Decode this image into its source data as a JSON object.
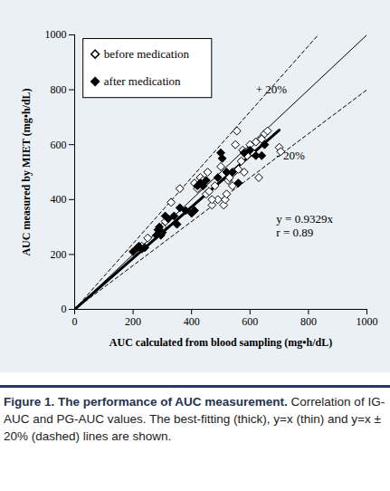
{
  "chart_data": {
    "type": "scatter",
    "x_label": "AUC calculated from blood sampling (mg•h/dL)",
    "y_label": "AUC measured by MIET (mg•h/dL)",
    "xlim": [
      0,
      1000
    ],
    "ylim": [
      0,
      1000
    ],
    "xticks": [
      0,
      200,
      400,
      600,
      800,
      1000
    ],
    "yticks": [
      0,
      200,
      400,
      600,
      800,
      1000
    ],
    "grid": false,
    "legend": "top-left",
    "series": [
      {
        "name": "before medication",
        "color": "#000000",
        "marker": "open diamond",
        "x": [
          410,
          420,
          430,
          440,
          450,
          455,
          460,
          470,
          480,
          490,
          500,
          510,
          515,
          520,
          525,
          530,
          540,
          545,
          550,
          555,
          560,
          570,
          575,
          580,
          590,
          600,
          610,
          620,
          630,
          640,
          650,
          660,
          700,
          705,
          360,
          330,
          310,
          300,
          250,
          230,
          470
        ],
        "values": [
          460,
          440,
          480,
          470,
          420,
          500,
          430,
          380,
          450,
          400,
          520,
          380,
          400,
          420,
          470,
          480,
          450,
          500,
          600,
          650,
          510,
          540,
          580,
          500,
          560,
          600,
          570,
          610,
          480,
          620,
          640,
          650,
          590,
          575,
          440,
          390,
          320,
          300,
          260,
          230,
          400
        ]
      },
      {
        "name": "after medication",
        "color": "#000000",
        "marker": "filled diamond",
        "x": [
          200,
          215,
          220,
          230,
          240,
          280,
          285,
          290,
          295,
          300,
          310,
          320,
          340,
          350,
          360,
          380,
          400,
          410,
          420,
          430,
          440,
          450,
          490,
          500,
          505,
          520,
          560,
          580,
          600,
          620,
          640,
          650,
          540
        ],
        "values": [
          210,
          225,
          230,
          220,
          225,
          270,
          290,
          300,
          270,
          280,
          340,
          330,
          340,
          310,
          370,
          360,
          350,
          360,
          450,
          460,
          450,
          470,
          480,
          570,
          550,
          500,
          460,
          570,
          580,
          560,
          560,
          600,
          500
        ]
      }
    ],
    "reference_lines": [
      {
        "slope": 0.9329,
        "x": [
          0,
          700
        ],
        "line_style": "thick"
      },
      {
        "slope": 1,
        "x": [
          0,
          1000
        ],
        "line_style": "solid"
      },
      {
        "slope": 1.2,
        "x": [
          0,
          1000
        ],
        "line_style": "dashed"
      },
      {
        "slope": 0.8,
        "x": [
          0,
          1000
        ],
        "line_style": "dashed"
      }
    ],
    "annotations": [
      "+ 20%",
      "- 20%",
      "y = 0.9329x",
      "r = 0.89"
    ],
    "caption": {
      "title": "Figure 1. The performance of AUC measurement.",
      "text": "Correlation of IG-AUC and PG-AUC values. The best-fitting (thick), y=x (thin) and y=x ± 20% (dashed) lines are shown."
    }
  }
}
